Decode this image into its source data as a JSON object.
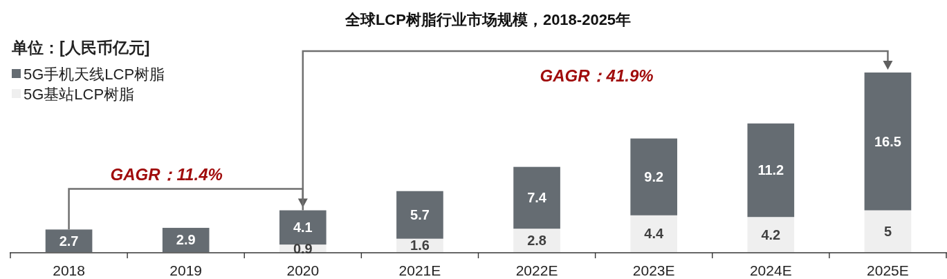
{
  "chart_data": {
    "type": "bar",
    "title": "全球LCP树脂行业市场规模，2018-2025年",
    "annotations": [
      "单位：[人民币亿元]",
      "GAGR：11.4%",
      "GAGR：41.9%"
    ],
    "categories": [
      "2018",
      "2019",
      "2020",
      "2021E",
      "2022E",
      "2023E",
      "2024E",
      "2025E"
    ],
    "stacked": true,
    "series": [
      {
        "name": "5G基站LCP树脂",
        "color": "#efefef",
        "values": [
          null,
          null,
          0.9,
          1.6,
          2.8,
          4.4,
          4.2,
          5
        ]
      },
      {
        "name": "5G手机天线LCP树脂",
        "color": "#656c72",
        "values": [
          2.7,
          2.9,
          4.1,
          5.7,
          7.4,
          9.2,
          11.2,
          16.5
        ]
      }
    ],
    "data_labels": true,
    "legend": "top left"
  }
}
